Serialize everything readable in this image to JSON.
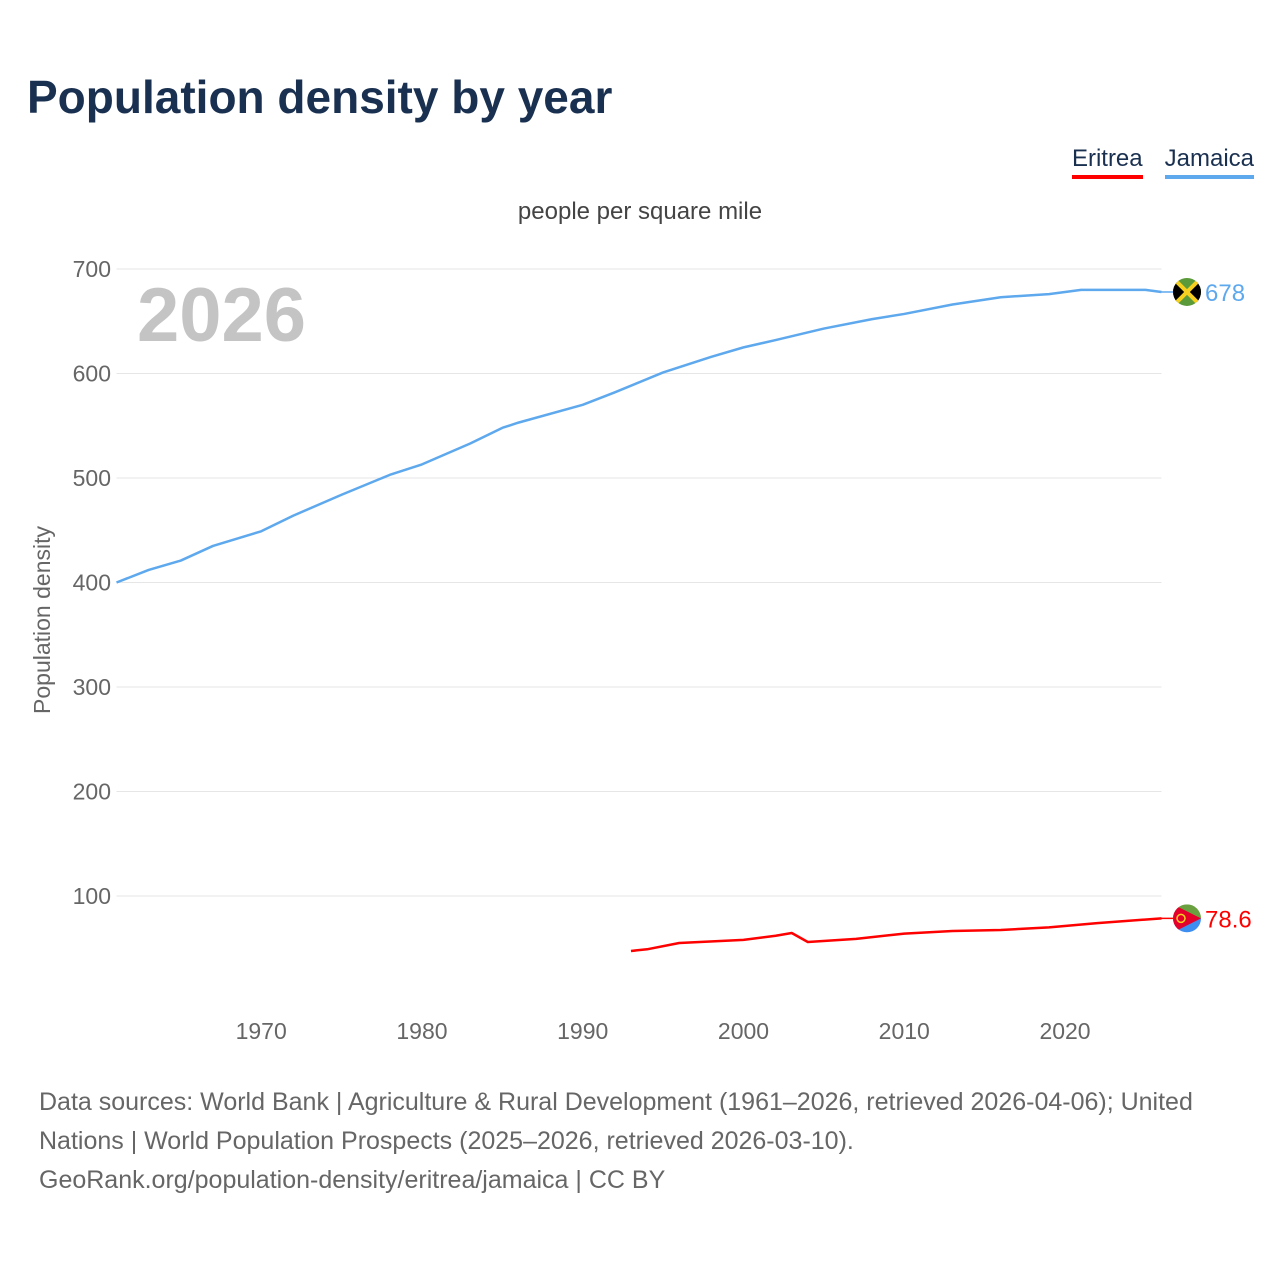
{
  "title": "Population density by year",
  "subtitle": "people per square mile",
  "year_watermark": "2026",
  "legend": [
    {
      "label": "Eritrea",
      "color": "#ff0000"
    },
    {
      "label": "Jamaica",
      "color": "#5ea8ee"
    }
  ],
  "source": {
    "line1": "Data sources: World Bank | Agriculture & Rural Development (1961–2026, retrieved 2026-04-06); United Nations | World Population Prospects (2025–2026, retrieved 2026-03-10).",
    "line2": "GeoRank.org/population-density/eritrea/jamaica | CC BY"
  },
  "chart_data": {
    "type": "line",
    "title": "Population density by year",
    "subtitle": "people per square mile",
    "xlabel": "",
    "ylabel": "Population density",
    "xlim": [
      1961,
      2026
    ],
    "ylim": [
      0,
      700
    ],
    "xticks": [
      1970,
      1980,
      1990,
      2000,
      2010,
      2020
    ],
    "yticks": [
      100,
      200,
      300,
      400,
      500,
      600,
      700
    ],
    "grid": true,
    "legend_position": "top-right",
    "series": [
      {
        "name": "Jamaica",
        "color": "#5ea8ee",
        "end_label": "678",
        "points": [
          [
            1961,
            400
          ],
          [
            1963,
            412
          ],
          [
            1965,
            421
          ],
          [
            1967,
            435
          ],
          [
            1970,
            449
          ],
          [
            1972,
            464
          ],
          [
            1975,
            484
          ],
          [
            1978,
            503
          ],
          [
            1980,
            513
          ],
          [
            1983,
            533
          ],
          [
            1985,
            548
          ],
          [
            1986,
            553
          ],
          [
            1990,
            570
          ],
          [
            1992,
            582
          ],
          [
            1995,
            601
          ],
          [
            1998,
            616
          ],
          [
            2000,
            625
          ],
          [
            2002,
            632
          ],
          [
            2005,
            643
          ],
          [
            2008,
            652
          ],
          [
            2010,
            657
          ],
          [
            2013,
            666
          ],
          [
            2016,
            673
          ],
          [
            2019,
            676
          ],
          [
            2021,
            680
          ],
          [
            2025,
            680
          ],
          [
            2026,
            678
          ]
        ]
      },
      {
        "name": "Eritrea",
        "color": "#ff0000",
        "end_label": "78.6",
        "points": [
          [
            1993,
            47.4
          ],
          [
            1994,
            49
          ],
          [
            1996,
            55
          ],
          [
            2000,
            58
          ],
          [
            2002,
            62
          ],
          [
            2003,
            64.6
          ],
          [
            2004,
            56
          ],
          [
            2007,
            59
          ],
          [
            2010,
            64
          ],
          [
            2013,
            66.5
          ],
          [
            2016,
            67.5
          ],
          [
            2019,
            70
          ],
          [
            2022,
            74
          ],
          [
            2026,
            78.6
          ]
        ]
      }
    ]
  }
}
